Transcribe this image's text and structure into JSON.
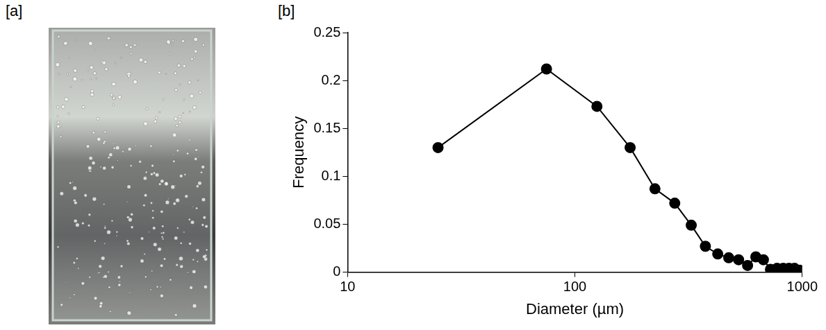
{
  "panel_labels": [
    "[a]",
    "[b]"
  ],
  "chart_data": {
    "type": "line",
    "x_label": "Diameter (µm)",
    "y_label": "Frequency",
    "x": [
      25,
      75,
      125,
      175,
      225,
      275,
      325,
      375,
      425,
      475,
      525,
      575,
      625,
      675,
      725,
      775,
      825,
      875,
      925,
      975
    ],
    "values": [
      0.13,
      0.212,
      0.173,
      0.13,
      0.087,
      0.072,
      0.049,
      0.027,
      0.019,
      0.015,
      0.013,
      0.007,
      0.016,
      0.013,
      0.003,
      0.004,
      0.004,
      0.004,
      0.004,
      0.002
    ],
    "color": "#000000",
    "marker": "circle",
    "log": "x",
    "grid": false,
    "xlim": [
      10,
      1000
    ],
    "xticks": [
      10,
      100,
      1000
    ],
    "ylim": [
      0,
      0.25
    ],
    "yticks": [
      0,
      0.05,
      0.1,
      0.15,
      0.2,
      0.25
    ]
  }
}
